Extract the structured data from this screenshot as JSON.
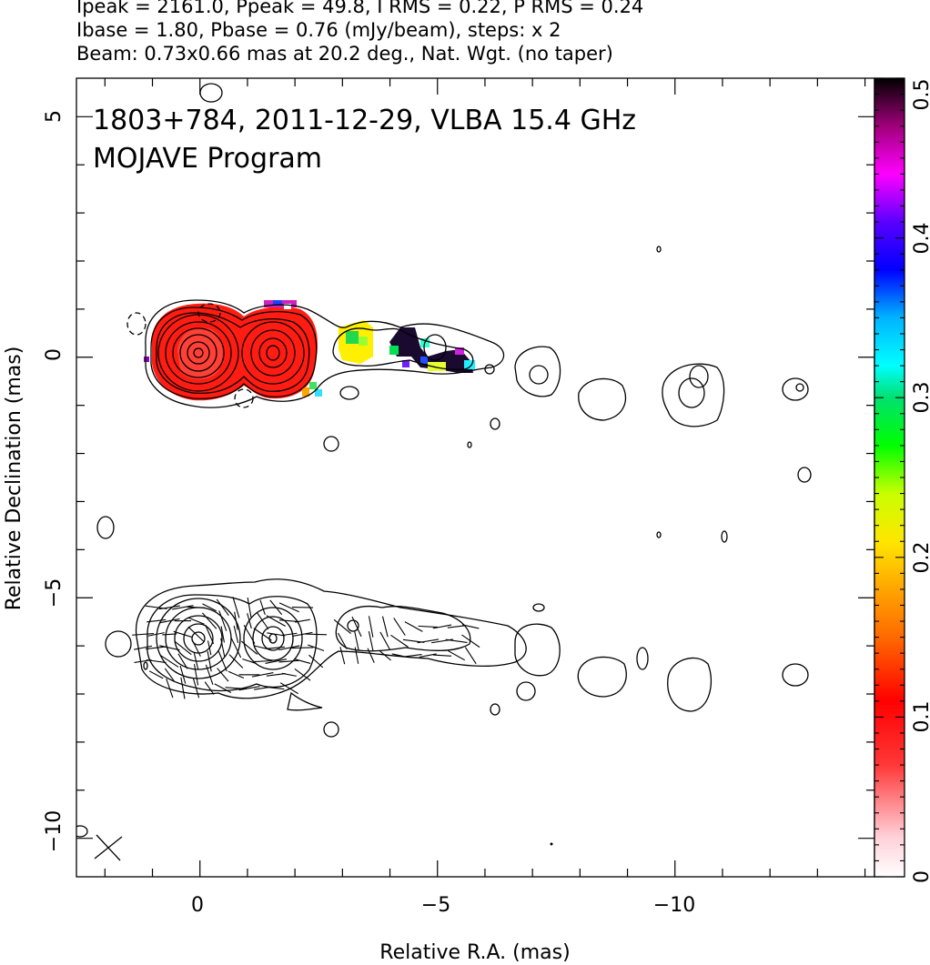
{
  "header": {
    "line1": "Ipeak = 2161.0, Ppeak = 49.8, I RMS = 0.22, P RMS = 0.24",
    "line2": "Ibase = 1.80, Pbase = 0.76 (mJy/beam), steps: x 2",
    "line3": "Beam: 0.73x0.66 mas at 20.2 deg., Nat. Wgt. (no taper)"
  },
  "chart_data": {
    "type": "heatmap",
    "title": "1803+784, 2011-12-29, VLBA 15.4 GHz",
    "subtitle": "MOJAVE Program",
    "xlabel": "Relative R.A. (mas)",
    "ylabel": "Relative Declination (mas)",
    "xlim": [
      2.6,
      -14.2
    ],
    "ylim": [
      -10.8,
      5.8
    ],
    "x_ticks": [
      0,
      -5,
      -10
    ],
    "x_tick_labels": [
      "0",
      "−5",
      "−10"
    ],
    "y_ticks": [
      5,
      0,
      -5,
      -10
    ],
    "y_tick_labels": [
      "5",
      "0",
      "−5",
      "−10"
    ],
    "colorbar": {
      "range": [
        0,
        0.5
      ],
      "ticks": [
        0,
        0.1,
        0.2,
        0.3,
        0.4,
        0.5
      ],
      "tick_labels": [
        "0",
        "0.1",
        "0.2",
        "0.3",
        "0.4",
        "0.5"
      ]
    },
    "upper_panel": {
      "offset_dec": 0,
      "core": {
        "ra": 0,
        "dec": 0
      },
      "knot": {
        "ra": -1.5,
        "dec": 0
      },
      "contour_levels": 7
    },
    "lower_panel": {
      "offset_dec": -6,
      "core": {
        "ra": 0,
        "dec": -6
      },
      "knot": {
        "ra": -1.5,
        "dec": -6
      }
    }
  },
  "colors": {
    "contour": "#000000",
    "frac_pol_low": "#ff0000",
    "frac_pol_mid": "#ffff00",
    "frac_pol_high": "#00cc66"
  }
}
